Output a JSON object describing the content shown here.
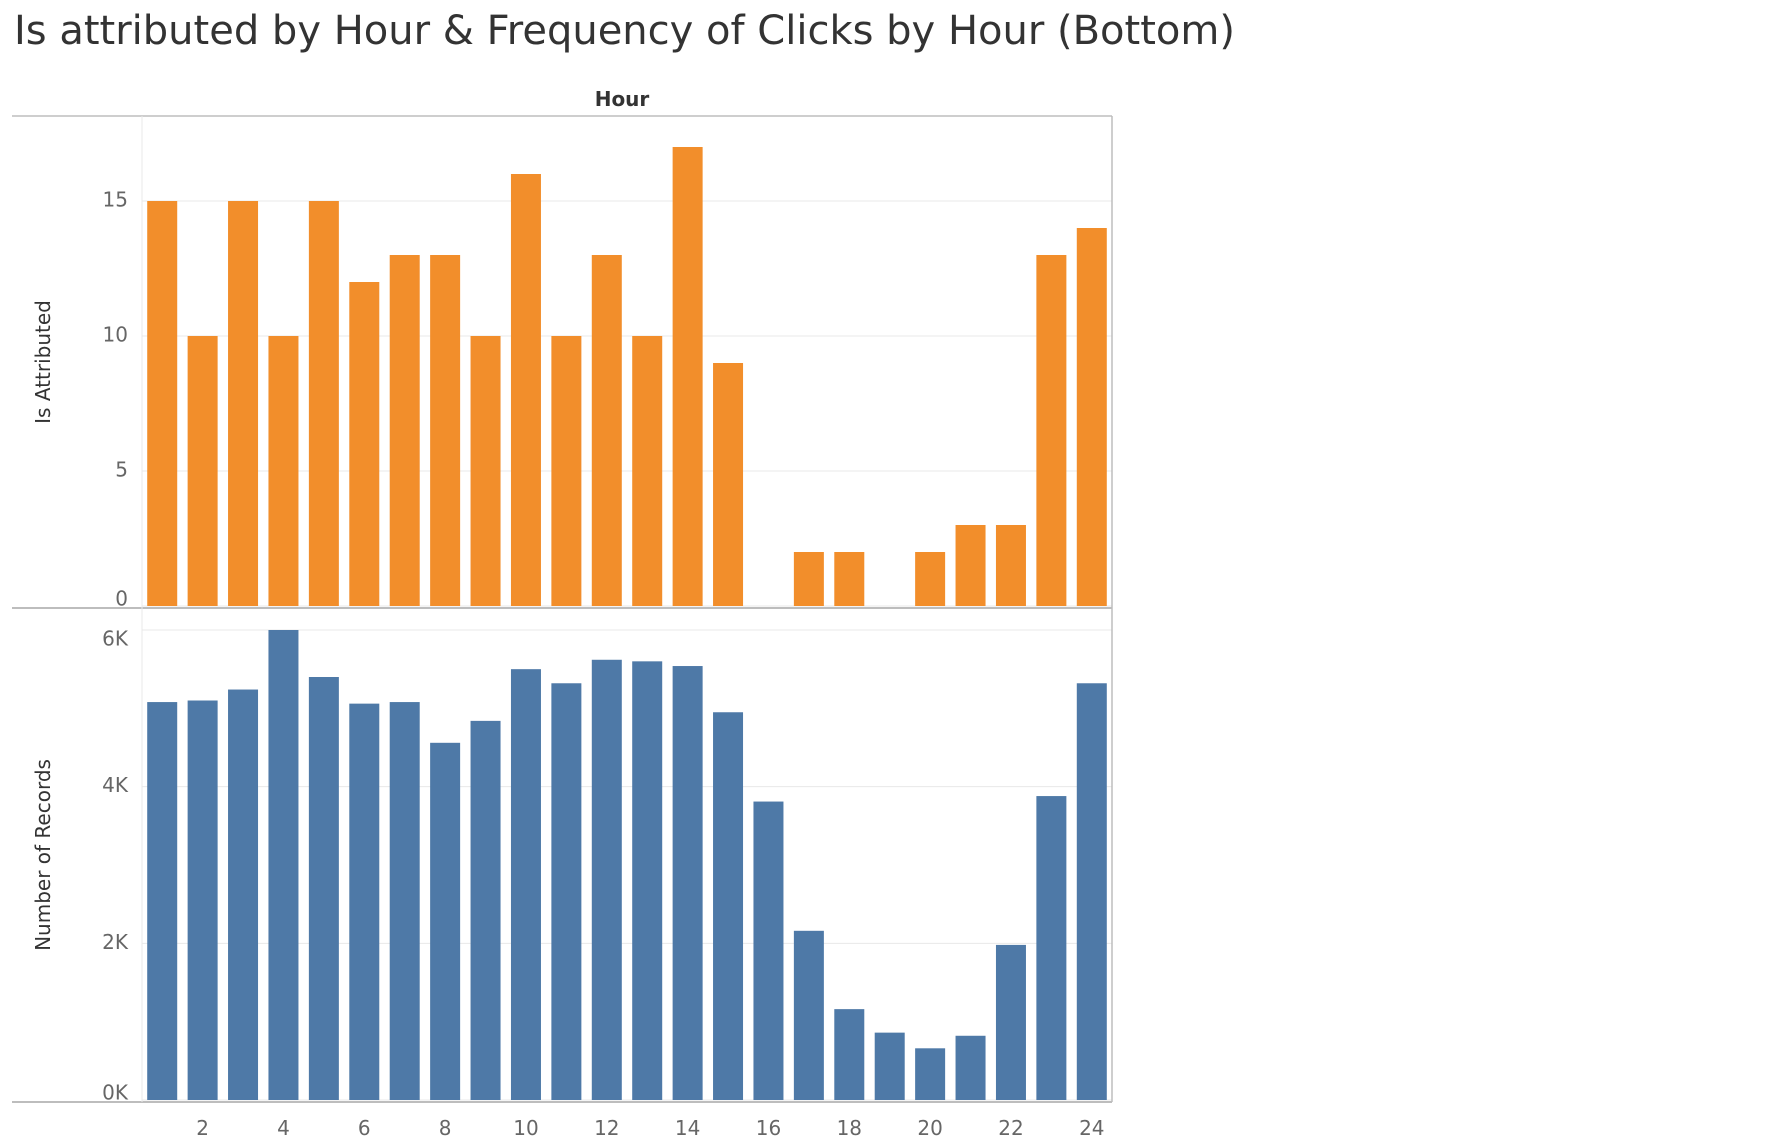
{
  "title": "Is attributed by Hour & Frequency of Clicks by Hour (Bottom)",
  "colors": {
    "top_bars": "#F28E2B",
    "bottom_bars": "#4E79A7",
    "gridline": "#E8E8E8",
    "axis_line": "#BDBDBD"
  },
  "chart_data": [
    {
      "type": "bar",
      "header": "Hour",
      "ylabel": "Is Attributed",
      "ylim": [
        0,
        18
      ],
      "y_ticks": [
        0,
        5,
        10,
        15
      ],
      "y_tick_labels": [
        "0",
        "5",
        "10",
        "15"
      ],
      "x": [
        1,
        2,
        3,
        4,
        5,
        6,
        7,
        8,
        9,
        10,
        11,
        12,
        13,
        14,
        15,
        16,
        17,
        18,
        19,
        20,
        21,
        22,
        23,
        24
      ],
      "values": [
        15,
        10,
        15,
        10,
        15,
        12,
        13,
        13,
        10,
        16,
        10,
        13,
        10,
        17,
        9,
        0,
        2,
        2,
        0,
        2,
        3,
        3,
        13,
        14
      ],
      "grid": true
    },
    {
      "type": "bar",
      "ylabel": "Number of Records",
      "ylim": [
        0,
        6000
      ],
      "y_ticks": [
        0,
        2000,
        4000,
        6000
      ],
      "y_tick_labels": [
        "0K",
        "2K",
        "4K",
        "6K"
      ],
      "x": [
        1,
        2,
        3,
        4,
        5,
        6,
        7,
        8,
        9,
        10,
        11,
        12,
        13,
        14,
        15,
        16,
        17,
        18,
        19,
        20,
        21,
        22,
        23,
        24
      ],
      "x_ticks": [
        2,
        4,
        6,
        8,
        10,
        12,
        14,
        16,
        18,
        20,
        22,
        24
      ],
      "x_tick_labels": [
        "2",
        "4",
        "6",
        "8",
        "10",
        "12",
        "14",
        "16",
        "18",
        "20",
        "22",
        "24"
      ],
      "values": [
        5080,
        5100,
        5240,
        6000,
        5400,
        5060,
        5080,
        4560,
        4840,
        5500,
        5320,
        5620,
        5600,
        5540,
        4950,
        3810,
        2160,
        1160,
        860,
        660,
        820,
        1980,
        3880,
        5320
      ],
      "grid": true
    }
  ]
}
